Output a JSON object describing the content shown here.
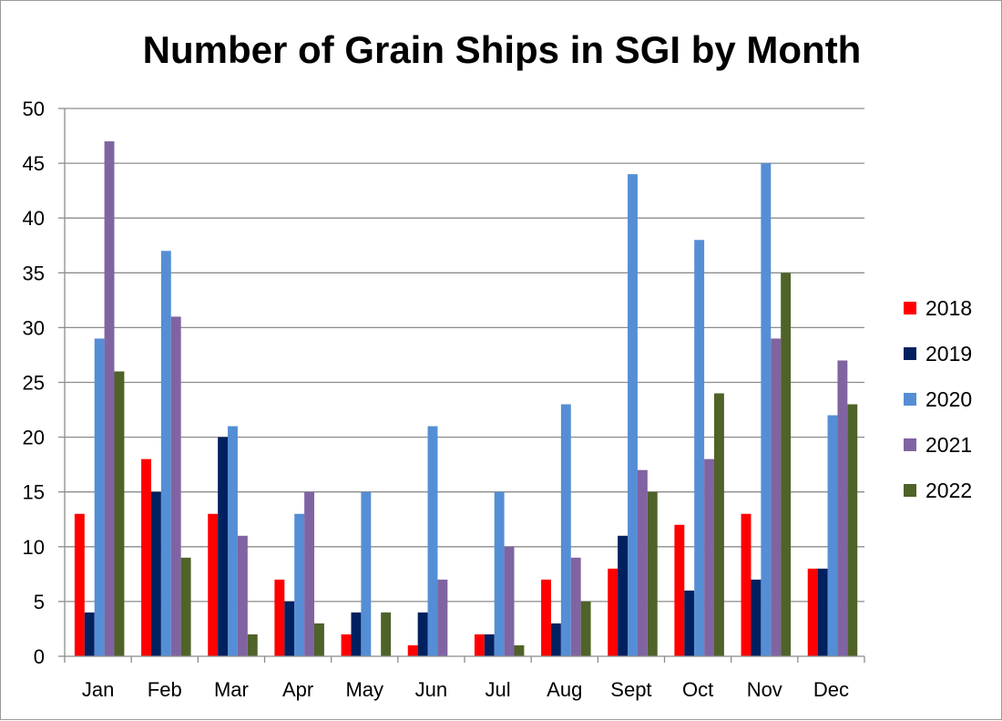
{
  "chart_data": {
    "type": "bar",
    "title": "Number of Grain Ships in SGI by Month",
    "xlabel": "",
    "ylabel": "",
    "categories": [
      "Jan",
      "Feb",
      "Mar",
      "Apr",
      "May",
      "Jun",
      "Jul",
      "Aug",
      "Sept",
      "Oct",
      "Nov",
      "Dec"
    ],
    "ylim": [
      0,
      50
    ],
    "yticks": [
      0,
      5,
      10,
      15,
      20,
      25,
      30,
      35,
      40,
      45,
      50
    ],
    "grid": true,
    "legend_position": "right",
    "series": [
      {
        "name": "2018",
        "color": "#ff0000",
        "values": [
          13,
          18,
          13,
          7,
          2,
          1,
          2,
          7,
          8,
          12,
          13,
          8
        ]
      },
      {
        "name": "2019",
        "color": "#002060",
        "values": [
          4,
          15,
          20,
          5,
          4,
          4,
          2,
          3,
          11,
          6,
          7,
          8
        ]
      },
      {
        "name": "2020",
        "color": "#558ed5",
        "values": [
          29,
          37,
          21,
          13,
          15,
          21,
          15,
          23,
          44,
          38,
          45,
          22
        ]
      },
      {
        "name": "2021",
        "color": "#8064a2",
        "values": [
          47,
          31,
          11,
          15,
          0,
          7,
          10,
          9,
          17,
          18,
          29,
          27
        ]
      },
      {
        "name": "2022",
        "color": "#4f6228",
        "values": [
          26,
          9,
          2,
          3,
          4,
          0,
          1,
          5,
          15,
          24,
          35,
          23
        ]
      }
    ]
  }
}
